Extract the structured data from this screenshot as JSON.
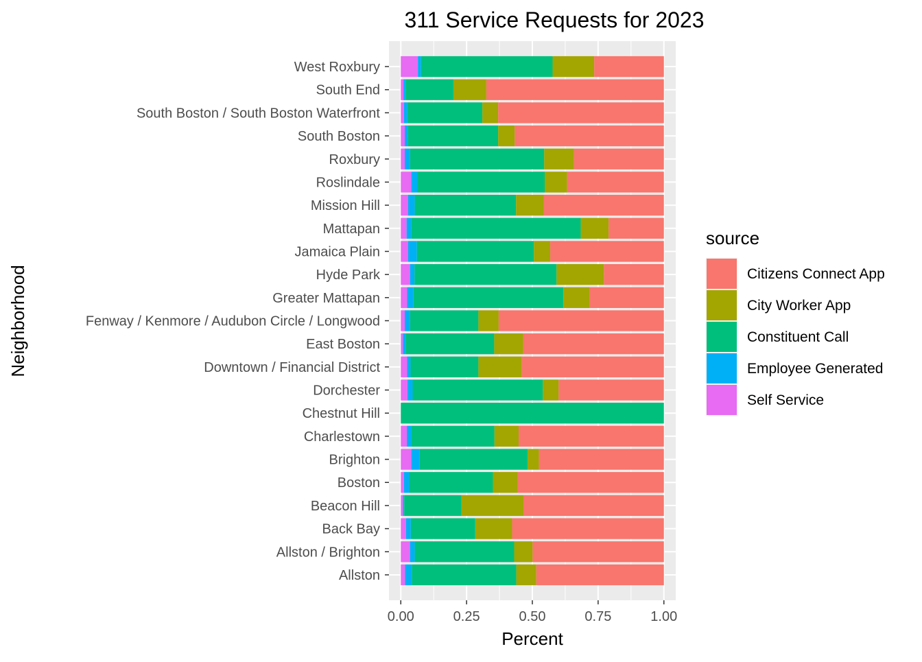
{
  "chart_data": {
    "type": "bar",
    "orientation": "horizontal",
    "stacked": true,
    "title": "311 Service Requests for 2023",
    "xlabel": "Percent",
    "ylabel": "Neighborhood",
    "xlim": [
      0,
      1
    ],
    "x_ticks": [
      "0.00",
      "0.25",
      "0.50",
      "0.75",
      "1.00"
    ],
    "x_tick_values": [
      0,
      0.25,
      0.5,
      0.75,
      1.0
    ],
    "grid": true,
    "legend": {
      "title": "source",
      "position": "right"
    },
    "categories": [
      "West Roxbury",
      "South End",
      "South Boston / South Boston Waterfront",
      "South Boston",
      "Roxbury",
      "Roslindale",
      "Mission Hill",
      "Mattapan",
      "Jamaica Plain",
      "Hyde Park",
      "Greater Mattapan",
      "Fenway / Kenmore / Audubon Circle / Longwood",
      "East Boston",
      "Downtown / Financial District",
      "Dorchester",
      "Chestnut Hill",
      "Charlestown",
      "Brighton",
      "Boston",
      "Beacon Hill",
      "Back Bay",
      "Allston / Brighton",
      "Allston"
    ],
    "series": [
      {
        "name": "Self Service",
        "color": "#E76BF3",
        "values": [
          0.065,
          0.01,
          0.012,
          0.015,
          0.015,
          0.04,
          0.028,
          0.022,
          0.028,
          0.035,
          0.024,
          0.015,
          0.008,
          0.024,
          0.025,
          0.0,
          0.023,
          0.04,
          0.012,
          0.008,
          0.02,
          0.035,
          0.016
        ]
      },
      {
        "name": "Employee Generated",
        "color": "#00B0F6",
        "values": [
          0.012,
          0.008,
          0.013,
          0.012,
          0.02,
          0.022,
          0.025,
          0.017,
          0.033,
          0.017,
          0.024,
          0.02,
          0.01,
          0.013,
          0.02,
          0.0,
          0.018,
          0.032,
          0.02,
          0.005,
          0.018,
          0.018,
          0.026
        ]
      },
      {
        "name": "Constituent Call",
        "color": "#00BF7D",
        "values": [
          0.5,
          0.182,
          0.285,
          0.343,
          0.51,
          0.485,
          0.385,
          0.645,
          0.445,
          0.54,
          0.57,
          0.26,
          0.337,
          0.258,
          0.495,
          1.0,
          0.315,
          0.41,
          0.318,
          0.218,
          0.245,
          0.378,
          0.397
        ]
      },
      {
        "name": "City Worker App",
        "color": "#A3A500",
        "values": [
          0.158,
          0.125,
          0.06,
          0.063,
          0.113,
          0.085,
          0.105,
          0.106,
          0.062,
          0.18,
          0.1,
          0.077,
          0.11,
          0.165,
          0.06,
          0.0,
          0.092,
          0.043,
          0.095,
          0.235,
          0.14,
          0.07,
          0.076
        ]
      },
      {
        "name": "Citizens Connect App",
        "color": "#F8766D",
        "values": [
          0.265,
          0.675,
          0.63,
          0.567,
          0.342,
          0.368,
          0.457,
          0.21,
          0.432,
          0.228,
          0.282,
          0.628,
          0.535,
          0.54,
          0.4,
          0.0,
          0.552,
          0.475,
          0.555,
          0.534,
          0.577,
          0.499,
          0.485
        ]
      }
    ]
  }
}
